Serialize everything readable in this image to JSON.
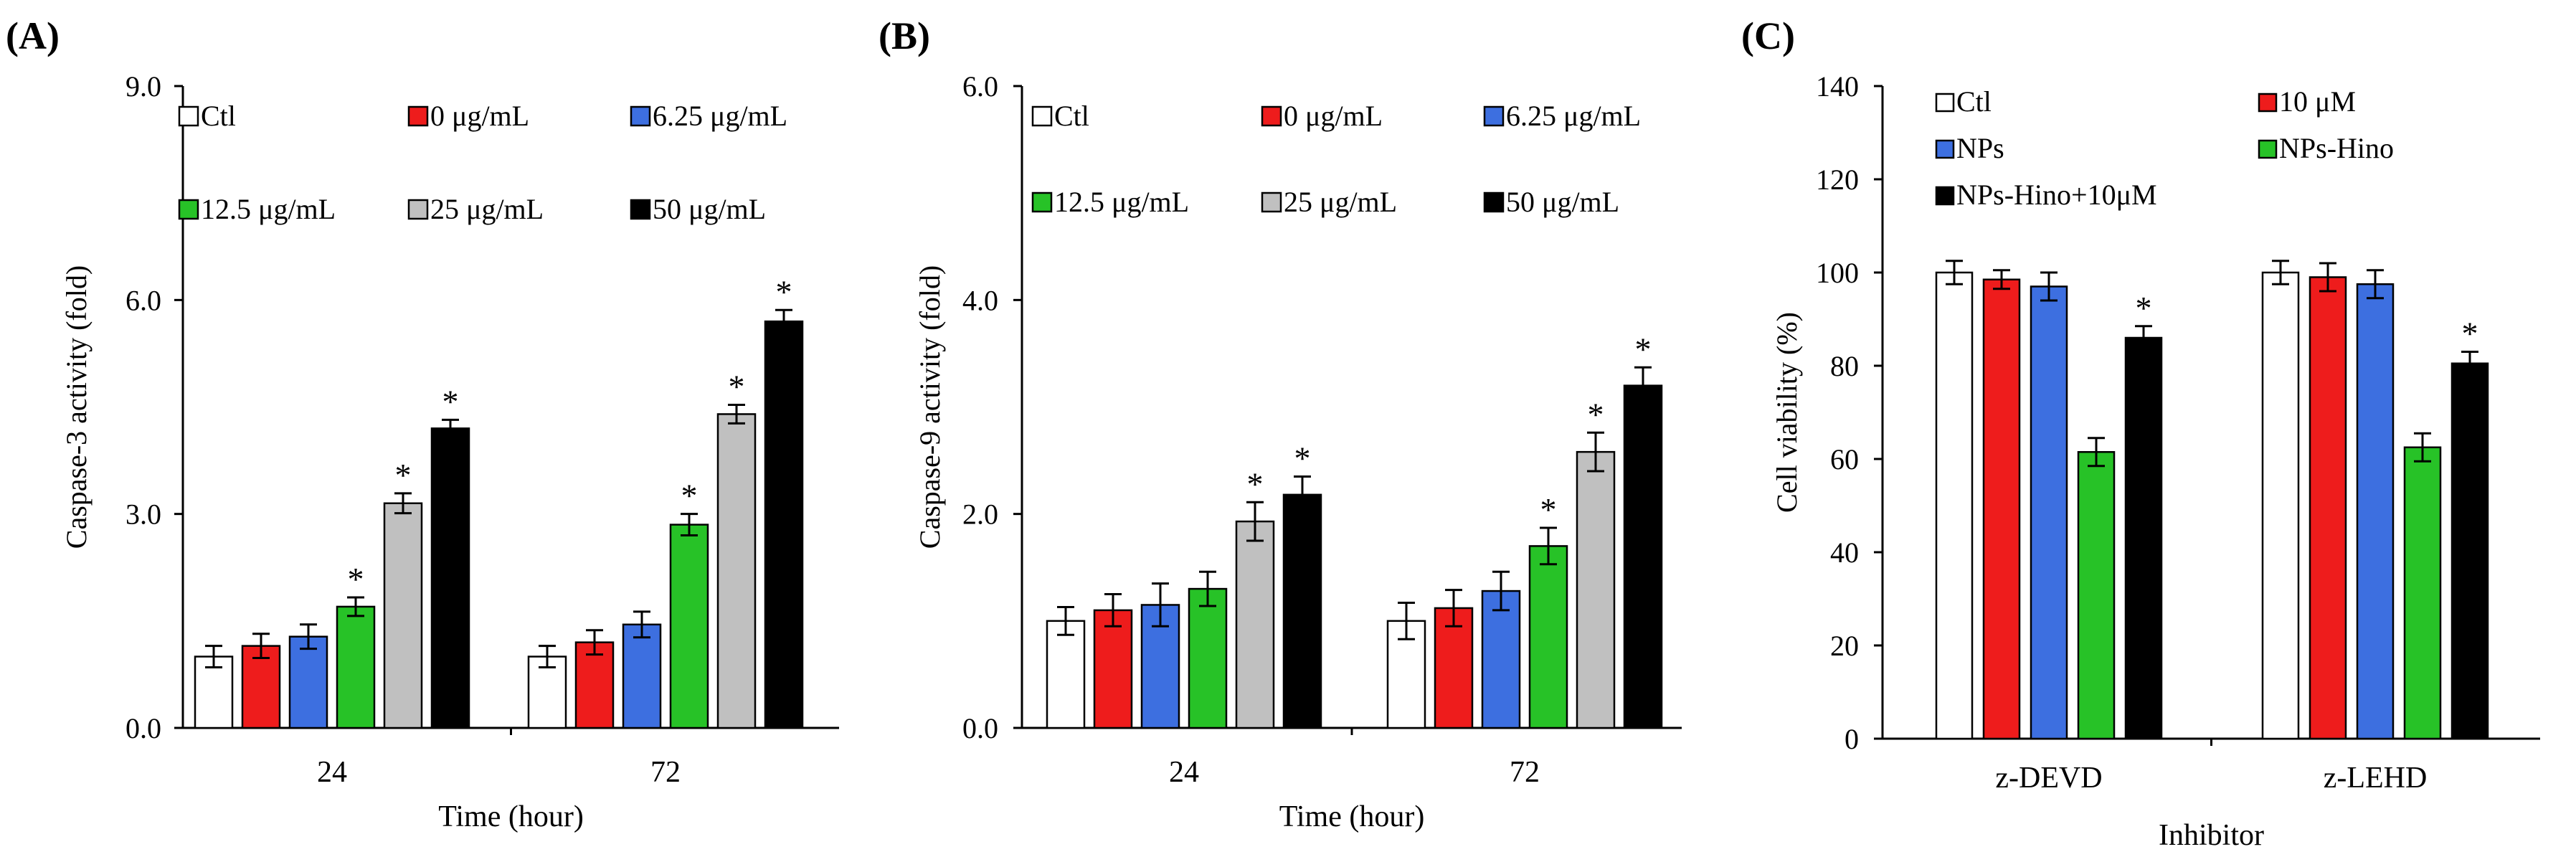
{
  "colors": {
    "Ctl": "#ffffff",
    "zero": "#ee1c1c",
    "blue": "#3d6fe0",
    "green": "#27c227",
    "gray": "#c0c0c0",
    "black": "#000000"
  },
  "chart_data": [
    {
      "type": "bar",
      "panel_label": "(A)",
      "title": "",
      "xlabel": "Time (hour)",
      "ylabel": "Caspase-3 activity (fold)",
      "ylim": [
        0,
        9
      ],
      "yticks": [
        "0.0",
        "3.0",
        "6.0",
        "9.0"
      ],
      "categories": [
        "24",
        "72"
      ],
      "legend_position": "top",
      "series": [
        {
          "name": "Ctl",
          "color": "#ffffff",
          "values": [
            1.0,
            1.0
          ],
          "errors": [
            0.15,
            0.15
          ],
          "significant": [
            false,
            false
          ]
        },
        {
          "name": "0 μg/mL",
          "color": "#ee1c1c",
          "values": [
            1.15,
            1.2
          ],
          "errors": [
            0.17,
            0.17
          ],
          "significant": [
            false,
            false
          ]
        },
        {
          "name": "6.25 μg/mL",
          "color": "#3d6fe0",
          "values": [
            1.28,
            1.45
          ],
          "errors": [
            0.17,
            0.18
          ],
          "significant": [
            false,
            false
          ]
        },
        {
          "name": "12.5 μg/mL",
          "color": "#27c227",
          "values": [
            1.7,
            2.85
          ],
          "errors": [
            0.13,
            0.15
          ],
          "significant": [
            true,
            true
          ]
        },
        {
          "name": "25 μg/mL",
          "color": "#c0c0c0",
          "values": [
            3.15,
            4.4
          ],
          "errors": [
            0.14,
            0.13
          ],
          "significant": [
            true,
            true
          ]
        },
        {
          "name": "50 μg/mL",
          "color": "#000000",
          "values": [
            4.2,
            5.7
          ],
          "errors": [
            0.12,
            0.16
          ],
          "significant": [
            true,
            true
          ]
        }
      ],
      "significance_marker": "*"
    },
    {
      "type": "bar",
      "panel_label": "(B)",
      "title": "",
      "xlabel": "Time (hour)",
      "ylabel": "Caspase-9 activity (fold)",
      "ylim": [
        0,
        6
      ],
      "yticks": [
        "0.0",
        "2.0",
        "4.0",
        "6.0"
      ],
      "categories": [
        "24",
        "72"
      ],
      "legend_position": "top",
      "series": [
        {
          "name": "Ctl",
          "color": "#ffffff",
          "values": [
            1.0,
            1.0
          ],
          "errors": [
            0.13,
            0.17
          ],
          "significant": [
            false,
            false
          ]
        },
        {
          "name": "0 μg/mL",
          "color": "#ee1c1c",
          "values": [
            1.1,
            1.12
          ],
          "errors": [
            0.15,
            0.17
          ],
          "significant": [
            false,
            false
          ]
        },
        {
          "name": "6.25 μg/mL",
          "color": "#3d6fe0",
          "values": [
            1.15,
            1.28
          ],
          "errors": [
            0.2,
            0.18
          ],
          "significant": [
            false,
            false
          ]
        },
        {
          "name": "12.5 μg/mL",
          "color": "#27c227",
          "values": [
            1.3,
            1.7
          ],
          "errors": [
            0.16,
            0.17
          ],
          "significant": [
            false,
            true
          ]
        },
        {
          "name": "25 μg/mL",
          "color": "#c0c0c0",
          "values": [
            1.93,
            2.58
          ],
          "errors": [
            0.18,
            0.18
          ],
          "significant": [
            true,
            true
          ]
        },
        {
          "name": "50 μg/mL",
          "color": "#000000",
          "values": [
            2.18,
            3.2
          ],
          "errors": [
            0.17,
            0.17
          ],
          "significant": [
            true,
            true
          ]
        }
      ],
      "significance_marker": "*"
    },
    {
      "type": "bar",
      "panel_label": "(C)",
      "title": "",
      "xlabel": "Inhibitor",
      "ylabel": "Cell viability (%)",
      "ylim": [
        0,
        140
      ],
      "yticks": [
        "0",
        "20",
        "40",
        "60",
        "80",
        "100",
        "120",
        "140"
      ],
      "categories": [
        "z-DEVD",
        "z-LEHD"
      ],
      "legend_position": "top",
      "series": [
        {
          "name": "Ctl",
          "color": "#ffffff",
          "values": [
            100,
            100
          ],
          "errors": [
            2.5,
            2.5
          ],
          "significant": [
            false,
            false
          ]
        },
        {
          "name": "10 μM",
          "color": "#ee1c1c",
          "values": [
            98.5,
            99
          ],
          "errors": [
            2.0,
            3.0
          ],
          "significant": [
            false,
            false
          ]
        },
        {
          "name": "NPs",
          "color": "#3d6fe0",
          "values": [
            97,
            97.5
          ],
          "errors": [
            3.0,
            3.0
          ],
          "significant": [
            false,
            false
          ]
        },
        {
          "name": "NPs-Hino",
          "color": "#27c227",
          "values": [
            61.5,
            62.5
          ],
          "errors": [
            3.0,
            3.0
          ],
          "significant": [
            false,
            false
          ]
        },
        {
          "name": "NPs-Hino+10μM",
          "color": "#000000",
          "values": [
            86,
            80.5
          ],
          "errors": [
            2.5,
            2.5
          ],
          "significant": [
            true,
            true
          ]
        }
      ],
      "significance_marker": "*"
    }
  ]
}
